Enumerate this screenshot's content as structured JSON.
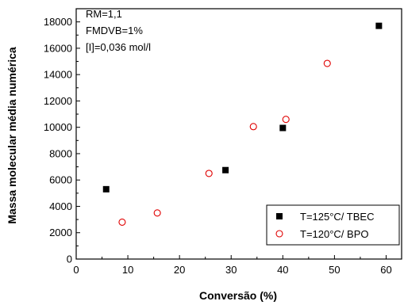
{
  "chart_data": {
    "type": "scatter",
    "title": "",
    "xlabel": "Conversão (%)",
    "ylabel": "Massa molecular média numérica",
    "xlim": [
      0,
      63
    ],
    "ylim": [
      0,
      19000
    ],
    "xticks": [
      0,
      10,
      20,
      30,
      40,
      50,
      60
    ],
    "yticks": [
      0,
      2000,
      4000,
      6000,
      8000,
      10000,
      12000,
      14000,
      16000,
      18000
    ],
    "grid": false,
    "legend_position": "bottom-right",
    "annotations": [
      "RM=1,1",
      "FMDVB=1%",
      "[I]=0,036 mol/l"
    ],
    "series": [
      {
        "name": "T=125°C/ TBEC",
        "marker": "filled-square",
        "color": "#000000",
        "x": [
          5.8,
          28.9,
          40.0,
          58.6
        ],
        "y": [
          5300,
          6750,
          9950,
          17700
        ]
      },
      {
        "name": "T=120°C/ BPO",
        "marker": "open-circle",
        "color": "#e00000",
        "x": [
          8.9,
          15.7,
          25.7,
          34.3,
          40.6,
          48.6
        ],
        "y": [
          2800,
          3500,
          6500,
          10050,
          10600,
          14850
        ]
      }
    ]
  }
}
